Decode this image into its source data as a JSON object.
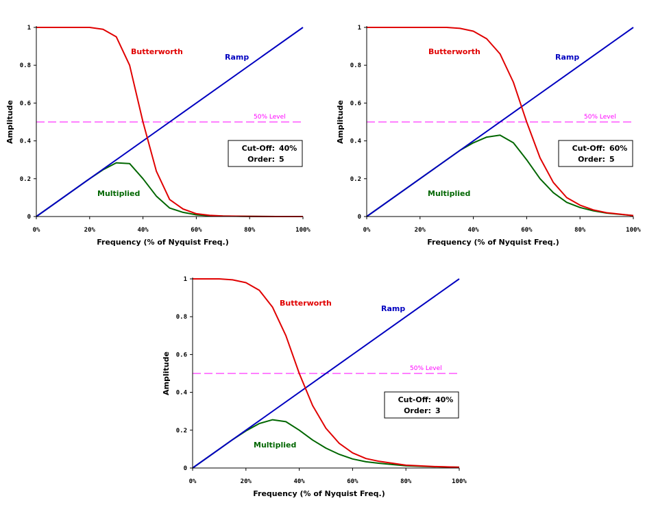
{
  "colors": {
    "butterworth": "#e00000",
    "ramp": "#0000c0",
    "multiplied": "#006600",
    "level": "#ff00ff",
    "axis": "#000000"
  },
  "chart_data": [
    {
      "type": "line",
      "xlabel": "Frequency (% of Nyquist Freq.)",
      "ylabel": "Amplitude",
      "xlim": [
        0,
        100
      ],
      "ylim": [
        0,
        1
      ],
      "x_ticks": [
        0,
        20,
        40,
        60,
        80,
        100
      ],
      "x_tick_labels": [
        "0%",
        "20%",
        "40%",
        "60%",
        "80%",
        "100%"
      ],
      "y_ticks": [
        0,
        0.2,
        0.4,
        0.6,
        0.8,
        1
      ],
      "y_tick_labels": [
        "0",
        "0.2",
        "0.4",
        "0.6",
        "0.8",
        "1"
      ],
      "level": {
        "value": 0.5,
        "label": "50% Level"
      },
      "info": {
        "cutoff_label": "Cut-Off:",
        "cutoff_value": "40%",
        "order_label": "Order:",
        "order_value": "5"
      },
      "series": [
        {
          "name": "Butterworth",
          "color_key": "butterworth",
          "x": [
            0,
            10,
            20,
            25,
            30,
            35,
            40,
            45,
            50,
            55,
            60,
            65,
            70,
            80,
            90,
            100
          ],
          "values": [
            1,
            1,
            1,
            0.99,
            0.95,
            0.8,
            0.5,
            0.24,
            0.09,
            0.04,
            0.015,
            0.006,
            0.003,
            0.001,
            0,
            0
          ]
        },
        {
          "name": "Ramp",
          "color_key": "ramp",
          "x": [
            0,
            100
          ],
          "values": [
            0,
            1
          ]
        },
        {
          "name": "Multiplied",
          "color_key": "multiplied",
          "x": [
            0,
            10,
            20,
            25,
            30,
            35,
            40,
            45,
            50,
            55,
            60,
            65,
            70,
            80,
            90,
            100
          ],
          "values": [
            0,
            0.1,
            0.2,
            0.247,
            0.284,
            0.28,
            0.2,
            0.108,
            0.045,
            0.022,
            0.009,
            0.004,
            0.002,
            0.001,
            0,
            0
          ]
        }
      ]
    },
    {
      "type": "line",
      "xlabel": "Frequency (% of Nyquist Freq.)",
      "ylabel": "Amplitude",
      "xlim": [
        0,
        100
      ],
      "ylim": [
        0,
        1
      ],
      "x_ticks": [
        0,
        20,
        40,
        60,
        80,
        100
      ],
      "x_tick_labels": [
        "0%",
        "20%",
        "40%",
        "60%",
        "80%",
        "100%"
      ],
      "y_ticks": [
        0,
        0.2,
        0.4,
        0.6,
        0.8,
        1
      ],
      "y_tick_labels": [
        "0",
        "0.2",
        "0.4",
        "0.6",
        "0.8",
        "1"
      ],
      "level": {
        "value": 0.5,
        "label": "50% Level"
      },
      "info": {
        "cutoff_label": "Cut-Off:",
        "cutoff_value": "60%",
        "order_label": "Order:",
        "order_value": "5"
      },
      "series": [
        {
          "name": "Butterworth",
          "color_key": "butterworth",
          "x": [
            0,
            10,
            20,
            30,
            35,
            40,
            45,
            50,
            55,
            60,
            65,
            70,
            75,
            80,
            85,
            90,
            100
          ],
          "values": [
            1,
            1,
            1,
            1,
            0.995,
            0.98,
            0.94,
            0.86,
            0.71,
            0.5,
            0.31,
            0.18,
            0.1,
            0.06,
            0.035,
            0.02,
            0.005
          ]
        },
        {
          "name": "Ramp",
          "color_key": "ramp",
          "x": [
            0,
            100
          ],
          "values": [
            0,
            1
          ]
        },
        {
          "name": "Multiplied",
          "color_key": "multiplied",
          "x": [
            0,
            10,
            20,
            30,
            35,
            40,
            45,
            50,
            55,
            60,
            65,
            70,
            75,
            80,
            85,
            90,
            100
          ],
          "values": [
            0,
            0.1,
            0.2,
            0.3,
            0.35,
            0.39,
            0.42,
            0.43,
            0.39,
            0.3,
            0.2,
            0.126,
            0.075,
            0.048,
            0.03,
            0.018,
            0.005
          ]
        }
      ]
    },
    {
      "type": "line",
      "xlabel": "Frequency (% of Nyquist Freq.)",
      "ylabel": "Amplitude",
      "xlim": [
        0,
        100
      ],
      "ylim": [
        0,
        1
      ],
      "x_ticks": [
        0,
        20,
        40,
        60,
        80,
        100
      ],
      "x_tick_labels": [
        "0%",
        "20%",
        "40%",
        "60%",
        "80%",
        "100%"
      ],
      "y_ticks": [
        0,
        0.2,
        0.4,
        0.6,
        0.8,
        1
      ],
      "y_tick_labels": [
        "0",
        "0.2",
        "0.4",
        "0.6",
        "0.8",
        "1"
      ],
      "level": {
        "value": 0.5,
        "label": "50% Level"
      },
      "info": {
        "cutoff_label": "Cut-Off:",
        "cutoff_value": "40%",
        "order_label": "Order:",
        "order_value": "3"
      },
      "series": [
        {
          "name": "Butterworth",
          "color_key": "butterworth",
          "x": [
            0,
            10,
            15,
            20,
            25,
            30,
            35,
            40,
            45,
            50,
            55,
            60,
            65,
            70,
            80,
            90,
            100
          ],
          "values": [
            1,
            1,
            0.995,
            0.98,
            0.94,
            0.85,
            0.7,
            0.5,
            0.33,
            0.21,
            0.13,
            0.08,
            0.05,
            0.035,
            0.015,
            0.008,
            0.004
          ]
        },
        {
          "name": "Ramp",
          "color_key": "ramp",
          "x": [
            0,
            100
          ],
          "values": [
            0,
            1
          ]
        },
        {
          "name": "Multiplied",
          "color_key": "multiplied",
          "x": [
            0,
            10,
            15,
            20,
            25,
            30,
            35,
            40,
            45,
            50,
            55,
            60,
            65,
            70,
            80,
            90,
            100
          ],
          "values": [
            0,
            0.1,
            0.15,
            0.196,
            0.235,
            0.255,
            0.245,
            0.2,
            0.148,
            0.105,
            0.072,
            0.048,
            0.033,
            0.025,
            0.012,
            0.007,
            0.004
          ]
        }
      ]
    }
  ]
}
